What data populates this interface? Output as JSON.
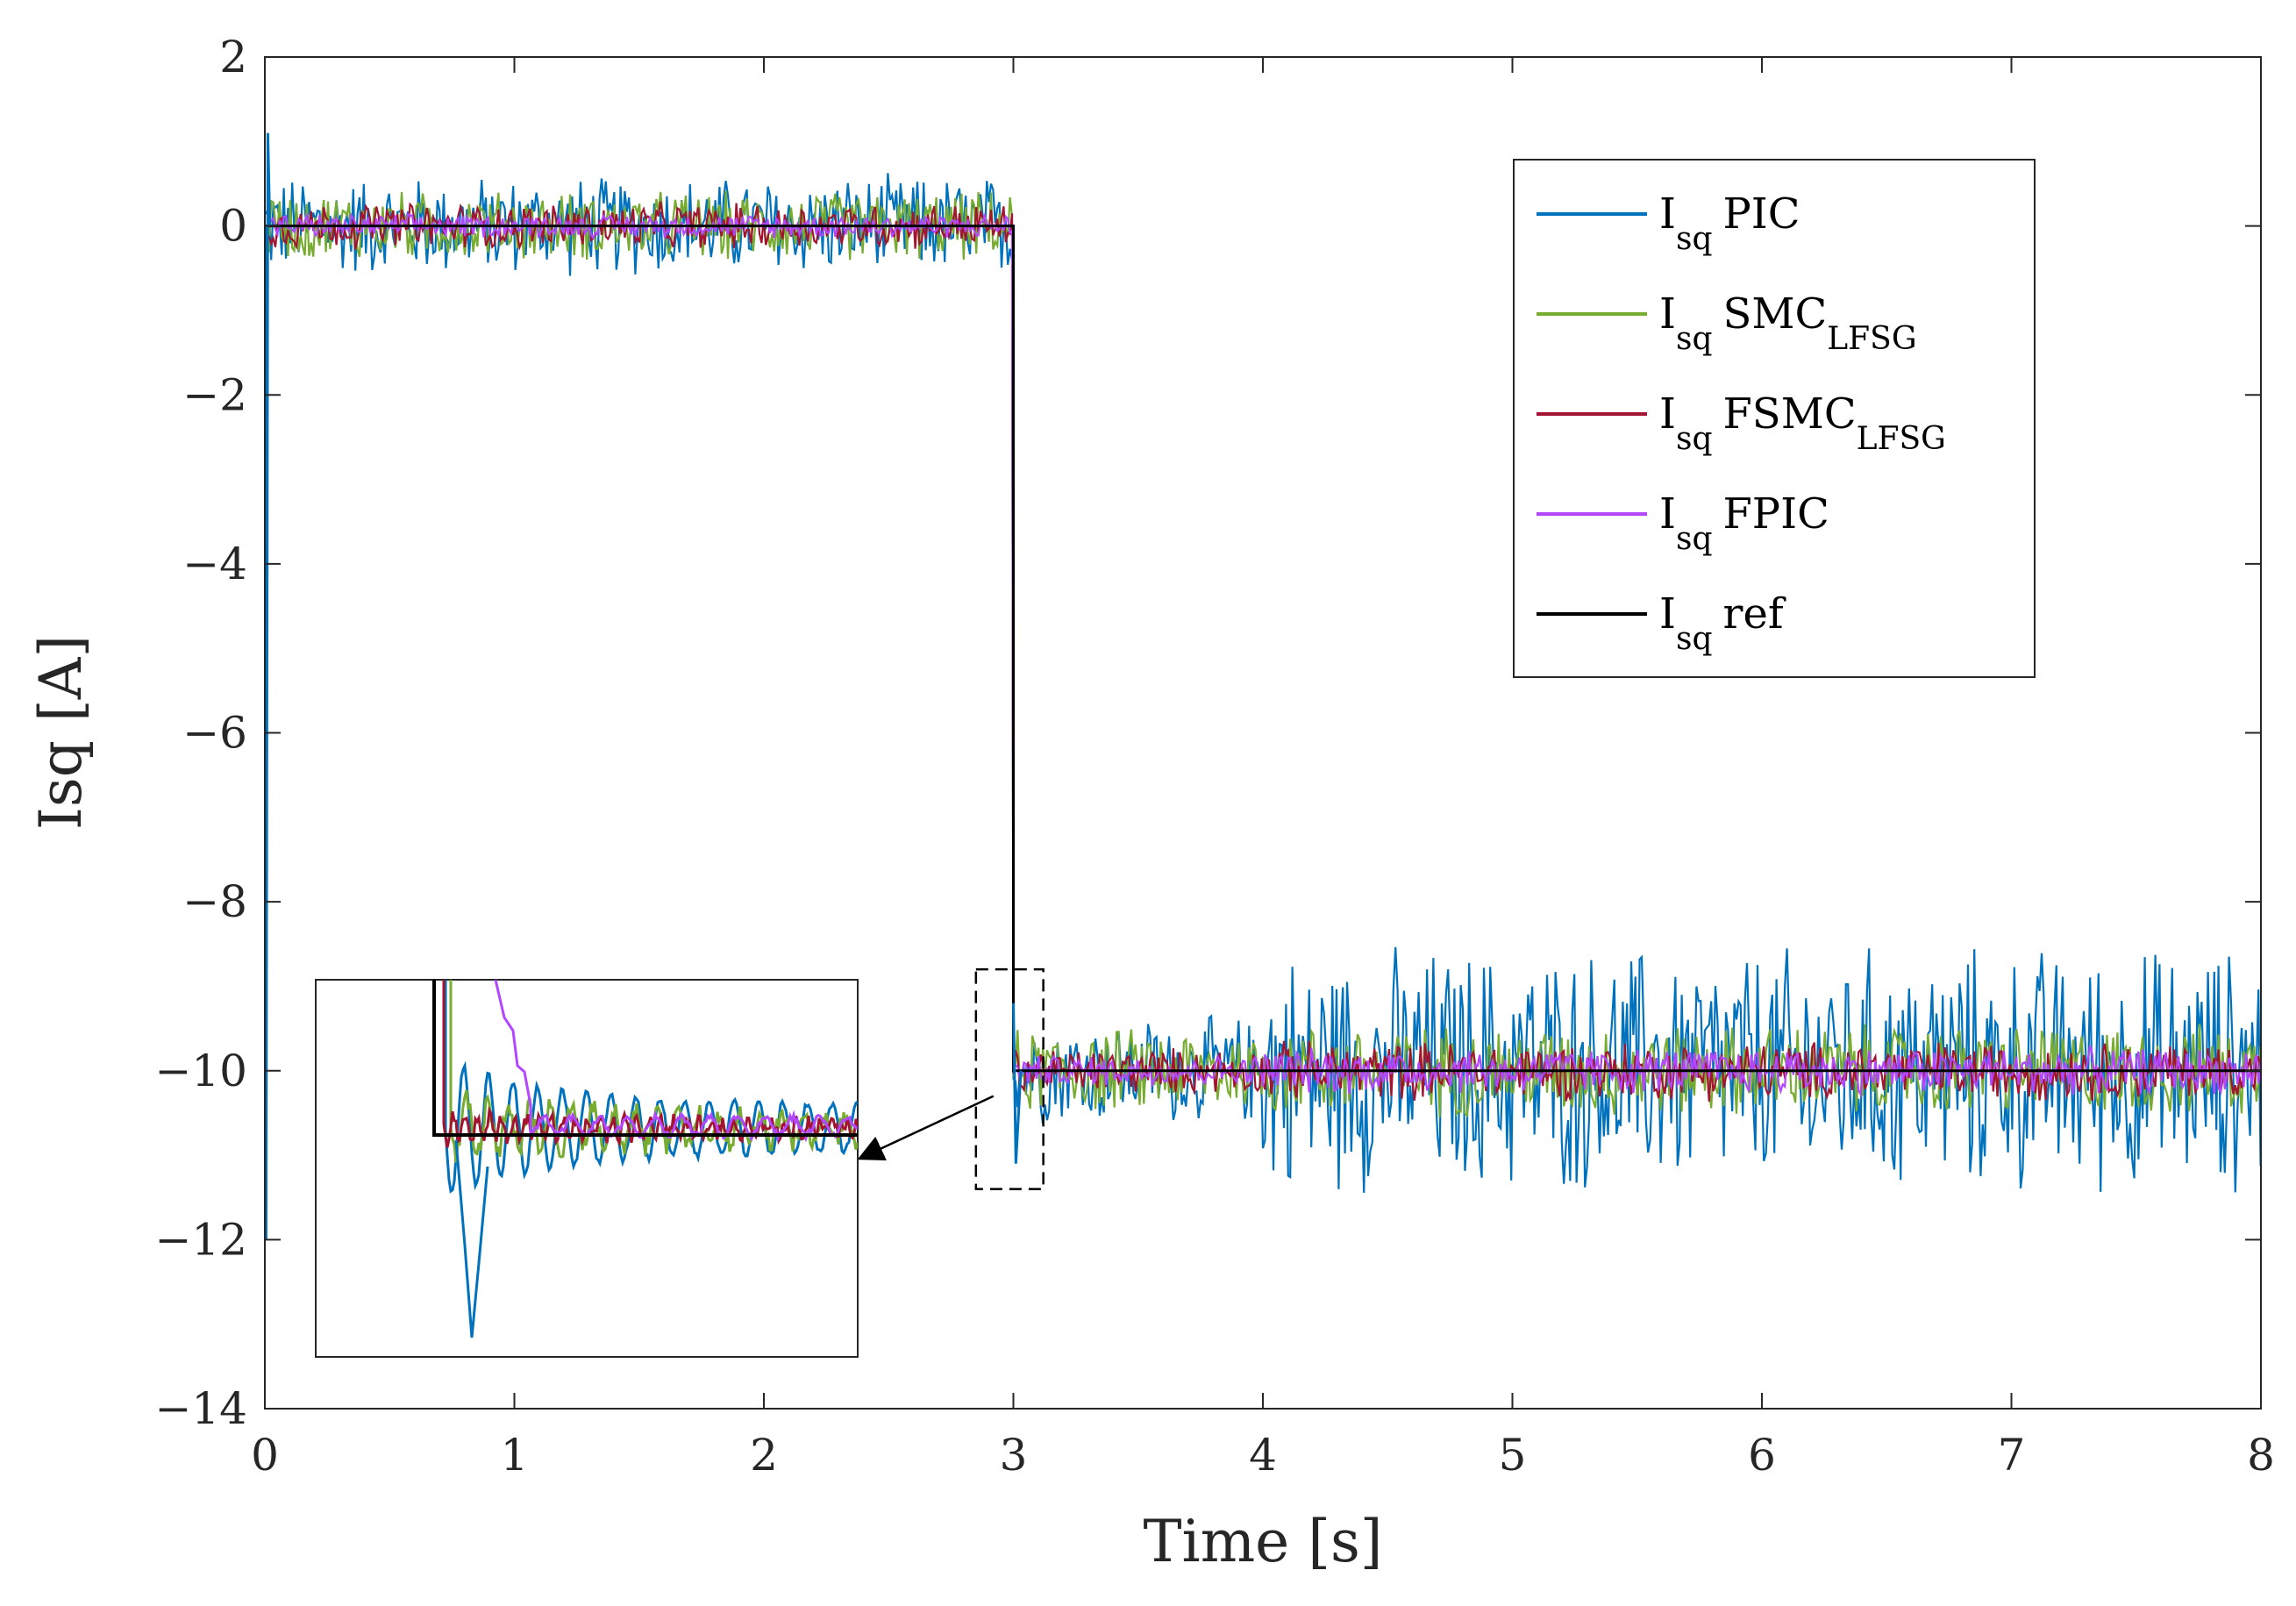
{
  "chart_data": {
    "type": "line",
    "xlabel": "Time [s]",
    "ylabel": "Isq [A]",
    "xlim": [
      0,
      8
    ],
    "ylim": [
      -14,
      2
    ],
    "xticks": [
      0,
      1,
      2,
      3,
      4,
      5,
      6,
      7,
      8
    ],
    "yticks": [
      2,
      0,
      -2,
      -4,
      -6,
      -8,
      -10,
      -12,
      -14
    ],
    "xtick_labels": [
      "0",
      "1",
      "2",
      "3",
      "4",
      "5",
      "6",
      "7",
      "8"
    ],
    "ytick_labels": [
      "2",
      "0",
      "−2",
      "−4",
      "−6",
      "−8",
      "−10",
      "−12",
      "−14"
    ],
    "grid": false,
    "legend_position": "top-right",
    "series": [
      {
        "key": "pic",
        "name": "I_sq PIC",
        "base": "I",
        "sub": "sq",
        "text": "PIC",
        "text_sub": "",
        "color": "#0072BD",
        "segments": [
          {
            "t0": 0,
            "t1": 3,
            "mean": 0,
            "amp": 0.65
          },
          {
            "t0": 3,
            "t1": 4,
            "mean": -10,
            "amp": 0.7
          },
          {
            "t0": 4,
            "t1": 8,
            "mean": -10,
            "amp": 1.6
          }
        ]
      },
      {
        "key": "smc",
        "name": "I_sq SMC_LFSG",
        "base": "I",
        "sub": "sq",
        "text": "SMC",
        "text_sub": "LFSG",
        "color": "#77AC30",
        "segments": [
          {
            "t0": 0,
            "t1": 3,
            "mean": 0,
            "amp": 0.45
          },
          {
            "t0": 3,
            "t1": 4,
            "mean": -10,
            "amp": 0.55
          },
          {
            "t0": 4,
            "t1": 8,
            "mean": -10,
            "amp": 0.6
          }
        ]
      },
      {
        "key": "fsmc",
        "name": "I_sq FSMC_LFSG",
        "base": "I",
        "sub": "sq",
        "text": "FSMC",
        "text_sub": "LFSG",
        "color": "#A2142F",
        "segments": [
          {
            "t0": 0,
            "t1": 3,
            "mean": 0,
            "amp": 0.3
          },
          {
            "t0": 3,
            "t1": 4,
            "mean": -10,
            "amp": 0.3
          },
          {
            "t0": 4,
            "t1": 8,
            "mean": -10,
            "amp": 0.38
          }
        ]
      },
      {
        "key": "fpic",
        "name": "I_sq FPIC",
        "base": "I",
        "sub": "sq",
        "text": "FPIC",
        "text_sub": "",
        "color": "#B347FF",
        "segments": [
          {
            "t0": 0,
            "t1": 3,
            "mean": 0,
            "amp": 0.15
          },
          {
            "t0": 3,
            "t1": 4,
            "mean": -10,
            "amp": 0.2
          },
          {
            "t0": 4,
            "t1": 8,
            "mean": -10,
            "amp": 0.3
          }
        ]
      },
      {
        "key": "ref",
        "name": "I_sq ref",
        "base": "I",
        "sub": "sq",
        "text": "ref",
        "text_sub": "",
        "color": "#000000",
        "points": [
          [
            0,
            0
          ],
          [
            3,
            0
          ],
          [
            3,
            -10
          ],
          [
            8,
            -10
          ]
        ]
      }
    ],
    "zoom_region": {
      "x": [
        2.85,
        3.12
      ],
      "y": [
        -11.4,
        -8.8
      ]
    },
    "annotations": [
      "inset: zoomed view of step response near t = 3 s"
    ]
  }
}
